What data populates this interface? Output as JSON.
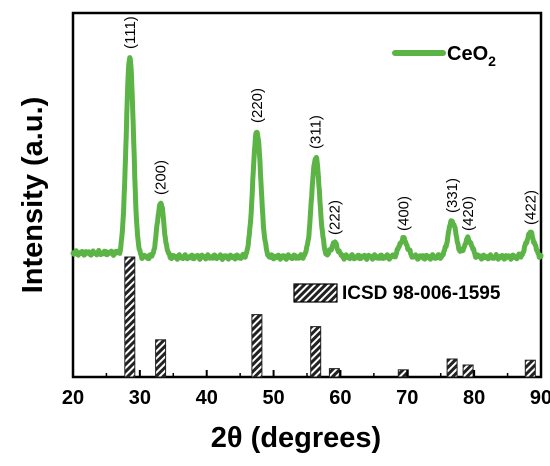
{
  "chart_data": {
    "type": "line",
    "xlabel": "2θ (degrees)",
    "ylabel": "Intensity (a.u.)",
    "xlim": [
      20,
      90
    ],
    "xticks": [
      20,
      30,
      40,
      50,
      60,
      70,
      80,
      90
    ],
    "colors": {
      "xrd": "#5cb346",
      "reference": "#222222",
      "frame": "#000000"
    },
    "series": [
      {
        "name": "CeO",
        "name_sub": "2",
        "peaks": [
          {
            "two_theta": 28.5,
            "height": 1.0,
            "width": 0.55,
            "label": "(111)"
          },
          {
            "two_theta": 33.1,
            "height": 0.27,
            "width": 0.5,
            "label": "(200)"
          },
          {
            "two_theta": 47.5,
            "height": 0.63,
            "width": 0.6,
            "label": "(220)"
          },
          {
            "two_theta": 56.3,
            "height": 0.5,
            "width": 0.6,
            "label": "(311)"
          },
          {
            "two_theta": 59.1,
            "height": 0.07,
            "width": 0.5,
            "label": "(222)"
          },
          {
            "two_theta": 69.4,
            "height": 0.09,
            "width": 0.6,
            "label": "(400)"
          },
          {
            "two_theta": 76.7,
            "height": 0.18,
            "width": 0.6,
            "label": "(331)"
          },
          {
            "two_theta": 79.1,
            "height": 0.09,
            "width": 0.55,
            "label": "(420)"
          },
          {
            "two_theta": 88.4,
            "height": 0.12,
            "width": 0.6,
            "label": "(422)"
          }
        ]
      },
      {
        "name": "ICSD 98-006-1595",
        "type": "bar",
        "x": [
          28.5,
          33.1,
          47.5,
          56.3,
          59.1,
          69.4,
          76.7,
          79.1,
          88.4
        ],
        "values": [
          100,
          31,
          52,
          42,
          7,
          6,
          15,
          10,
          14
        ]
      }
    ],
    "legend_position": "top-right"
  }
}
